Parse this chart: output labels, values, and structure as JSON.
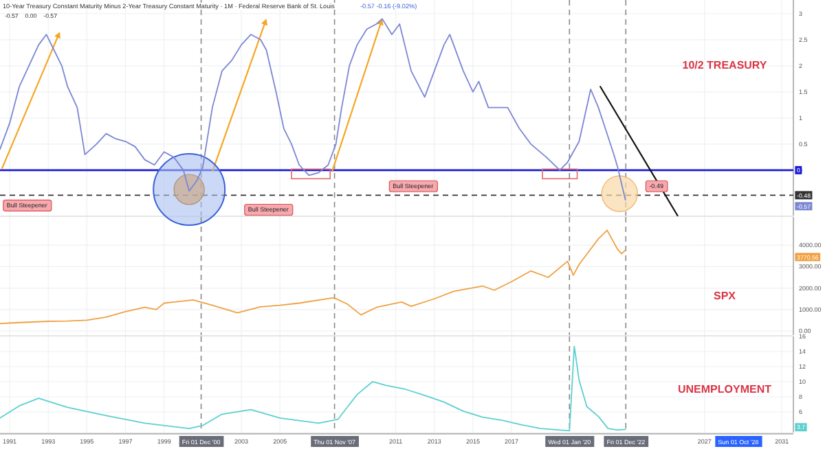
{
  "chart_data": [
    {
      "type": "line",
      "title": "10/2 TREASURY",
      "subtitle": "10-Year Treasury Constant Maturity Minus 2-Year Treasury Constant Maturity · 1M · Federal Reserve Bank of St. Louis",
      "xlim": [
        1990.5,
        2031.6
      ],
      "xticks": [
        1991,
        1993,
        1995,
        1997,
        1999,
        2003,
        2005,
        2011,
        2013,
        2015,
        2017,
        2027,
        2031
      ],
      "ylim": [
        -0.87,
        3.26
      ],
      "yticks": [
        0,
        0.5,
        1,
        1.5,
        2,
        2.5,
        3
      ],
      "tick_labels": "y",
      "grid": true,
      "series": [
        {
          "color": "#7b86d4",
          "x": [
            1990.5,
            1991,
            1991.5,
            1992,
            1992.5,
            1992.9,
            1993.3,
            1993.7,
            1994,
            1994.5,
            1994.9,
            1995.5,
            1996,
            1996.5,
            1997,
            1997.5,
            1998,
            1998.5,
            1999,
            1999.5,
            2000,
            2000.3,
            2000.7,
            2001,
            2001.5,
            2002,
            2002.5,
            2003,
            2003.5,
            2004,
            2004.3,
            2004.8,
            2005.2,
            2005.6,
            2006,
            2006.5,
            2007,
            2007.5,
            2007.9,
            2008.2,
            2008.6,
            2009,
            2009.5,
            2010,
            2010.3,
            2010.8,
            2011.2,
            2011.8,
            2012.5,
            2013.5,
            2013.8,
            2014.5,
            2015,
            2015.3,
            2015.8,
            2016.8,
            2017.4,
            2018,
            2018.8,
            2019.5,
            2019.9,
            2020.5,
            2021.1,
            2021.5,
            2021.9,
            2022.3,
            2022.5,
            2022.9
          ],
          "values": [
            0.4,
            0.9,
            1.6,
            2,
            2.4,
            2.6,
            2.3,
            2,
            1.6,
            1.2,
            0.3,
            0.5,
            0.7,
            0.6,
            0.55,
            0.45,
            0.2,
            0.1,
            0.35,
            0.25,
            0,
            -0.4,
            -0.2,
            0.05,
            1.2,
            1.9,
            2.1,
            2.4,
            2.6,
            2.5,
            2.3,
            1.5,
            0.8,
            0.5,
            0.1,
            -0.1,
            -0.05,
            0.1,
            0.5,
            1.2,
            2,
            2.4,
            2.7,
            2.8,
            2.9,
            2.6,
            2.8,
            1.9,
            1.4,
            2.4,
            2.6,
            1.9,
            1.5,
            1.7,
            1.2,
            1.2,
            0.8,
            0.5,
            0.25,
            0,
            0.15,
            0.55,
            1.55,
            1.2,
            0.75,
            0.3,
            0.05,
            -0.57
          ]
        },
        {
          "type": "line",
          "color": "#111111",
          "x": [
            2021.6,
            2025.6
          ],
          "values": [
            1.6,
            -0.87
          ]
        }
      ],
      "ref_lines": [
        {
          "axis": "y",
          "value": 0,
          "label": "0",
          "color": "#1b1bd6",
          "line_style": "solid"
        },
        {
          "axis": "y",
          "value": -0.48,
          "label": "-0.48",
          "color": "#333333",
          "line_style": "dashed"
        },
        {
          "axis": "x",
          "value": 2000.92,
          "color": "#888888",
          "line_style": "dashed"
        },
        {
          "axis": "x",
          "value": 2007.83,
          "color": "#888888",
          "line_style": "dashed"
        },
        {
          "axis": "x",
          "value": 2020,
          "color": "#888888",
          "line_style": "dashed"
        },
        {
          "axis": "x",
          "value": 2022.92,
          "color": "#888888",
          "line_style": "dashed"
        }
      ],
      "annotations": [
        "-0.57",
        "0.00",
        "-0.57",
        "-0.57 -0.16 (-9.02%)",
        "Bull Steepener",
        "Bull Steepener",
        "Bull Steepener",
        {
          "text": "-0.49",
          "x": 2024.5,
          "y": -0.3
        },
        "-0.57"
      ]
    },
    {
      "type": "line",
      "title": "SPX",
      "xlim": [
        1990.5,
        2031.6
      ],
      "xticks": [
        1991,
        1993,
        1995,
        1997,
        1999,
        2003,
        2005,
        2011,
        2013,
        2015,
        2017,
        2027,
        2031
      ],
      "ylim": [
        -190,
        5320
      ],
      "yticks": [
        {
          "value": 0,
          "label": "0.00"
        },
        {
          "value": 1000,
          "label": "1000.00"
        },
        {
          "value": 2000,
          "label": "2000.00"
        },
        {
          "value": 3000,
          "label": "3000.00"
        },
        {
          "value": 4000,
          "label": "4000.00"
        }
      ],
      "tick_labels": "y",
      "grid": true,
      "series": [
        {
          "color": "#f0a040",
          "x": [
            1990.5,
            1991,
            1992,
            1993,
            1994,
            1995,
            1996,
            1997,
            1998,
            1998.6,
            1999,
            2000.5,
            2001.5,
            2002.8,
            2004,
            2005,
            2006,
            2007.8,
            2008.5,
            2009.2,
            2010,
            2011.3,
            2011.8,
            2013,
            2014,
            2015.5,
            2016.1,
            2017,
            2018,
            2018.9,
            2019.9,
            2020.2,
            2020.5,
            2021,
            2021.5,
            2021.95,
            2022.5,
            2022.7,
            2022.9
          ],
          "values": [
            340,
            370,
            410,
            450,
            460,
            500,
            650,
            900,
            1100,
            1000,
            1300,
            1450,
            1200,
            850,
            1130,
            1200,
            1300,
            1550,
            1250,
            750,
            1100,
            1350,
            1150,
            1500,
            1850,
            2100,
            1900,
            2300,
            2800,
            2500,
            3250,
            2600,
            3100,
            3700,
            4300,
            4700,
            3800,
            3600,
            3770
          ]
        }
      ],
      "ref_lines": [
        {
          "axis": "x",
          "value": 2000.92,
          "color": "#888888",
          "line_style": "dashed"
        },
        {
          "axis": "x",
          "value": 2007.83,
          "color": "#888888",
          "line_style": "dashed"
        },
        {
          "axis": "x",
          "value": 2020,
          "color": "#888888",
          "line_style": "dashed"
        },
        {
          "axis": "x",
          "value": 2022.92,
          "color": "#888888",
          "line_style": "dashed"
        }
      ],
      "annotations": [
        "3770.56"
      ]
    },
    {
      "type": "line",
      "title": "UNEMPLOYMENT",
      "xlim": [
        1990.5,
        2031.6
      ],
      "xticks": [
        1991,
        1993,
        1995,
        1997,
        1999,
        2003,
        2005,
        2011,
        2013,
        2015,
        2017,
        2027,
        2031
      ],
      "ylim": [
        3.27,
        16
      ],
      "yticks": [
        6,
        8,
        10,
        12,
        14,
        16
      ],
      "grid": true,
      "series": [
        {
          "color": "#5ccfcf",
          "x": [
            1990.5,
            1991.5,
            1992.5,
            1994,
            1996,
            1998,
            2000.3,
            2001,
            2002,
            2003.5,
            2005,
            2007,
            2008,
            2009,
            2009.8,
            2010.5,
            2011.5,
            2012.5,
            2013.5,
            2014.5,
            2015.5,
            2016.5,
            2017.5,
            2018.5,
            2019.5,
            2020,
            2020.25,
            2020.5,
            2020.9,
            2021.5,
            2022,
            2022.5,
            2022.9
          ],
          "values": [
            5.2,
            6.8,
            7.8,
            6.6,
            5.5,
            4.5,
            3.8,
            4.2,
            5.7,
            6.3,
            5.2,
            4.5,
            5,
            8.3,
            10,
            9.5,
            9,
            8.2,
            7.3,
            6.1,
            5.3,
            4.9,
            4.3,
            3.8,
            3.6,
            3.5,
            14.7,
            10.2,
            6.7,
            5.4,
            3.8,
            3.6,
            3.7
          ]
        }
      ],
      "ref_lines": [
        {
          "axis": "x",
          "value": 2000.92,
          "label": "Fri 01 Dec '00",
          "color": "#888888",
          "line_style": "dashed"
        },
        {
          "axis": "x",
          "value": 2007.83,
          "label": "Thu 01 Nov '07",
          "color": "#888888",
          "line_style": "dashed"
        },
        {
          "axis": "x",
          "value": 2020,
          "label": "Wed 01 Jan '20",
          "color": "#888888",
          "line_style": "dashed"
        },
        {
          "axis": "x",
          "value": 2022.92,
          "label": "Fri 01 Dec '22",
          "color": "#888888",
          "line_style": "dashed"
        }
      ],
      "annotations": [
        "Sun 01 Oct '28",
        "3.7"
      ]
    }
  ]
}
